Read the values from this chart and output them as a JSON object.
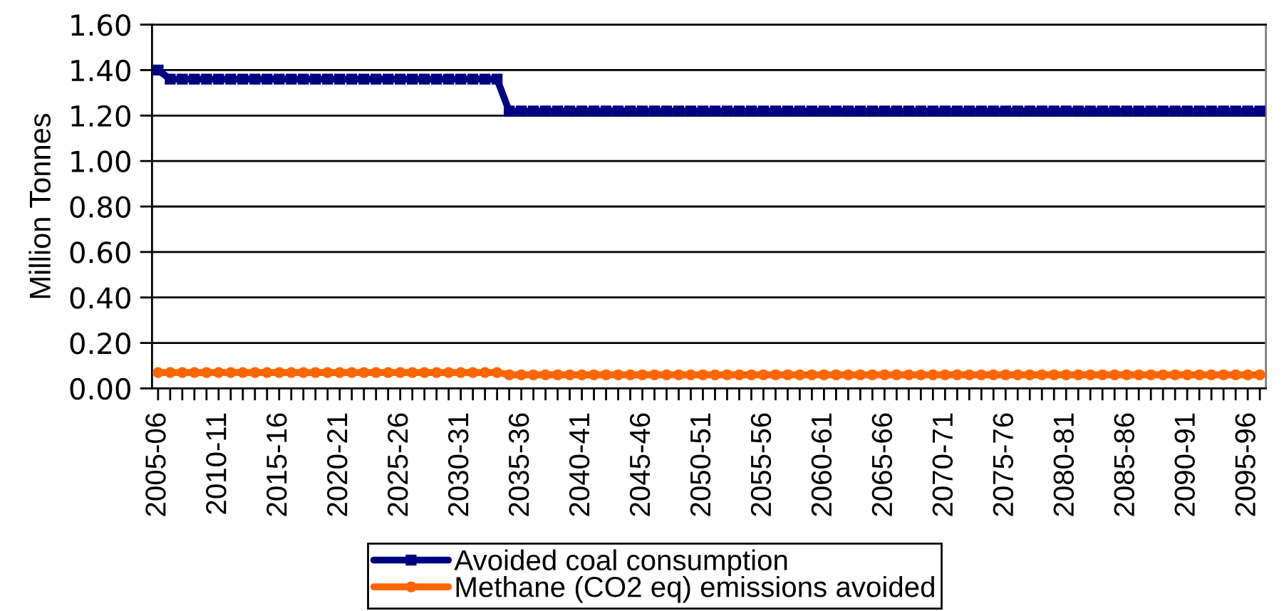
{
  "chart_data": {
    "type": "line",
    "categories": [
      "2005-06",
      null,
      null,
      null,
      null,
      "2010-11",
      null,
      null,
      null,
      null,
      "2015-16",
      null,
      null,
      null,
      null,
      "2020-21",
      null,
      null,
      null,
      null,
      "2025-26",
      null,
      null,
      null,
      null,
      "2030-31",
      null,
      null,
      null,
      null,
      "2035-36",
      null,
      null,
      null,
      null,
      "2040-41",
      null,
      null,
      null,
      null,
      "2045-46",
      null,
      null,
      null,
      null,
      "2050-51",
      null,
      null,
      null,
      null,
      "2055-56",
      null,
      null,
      null,
      null,
      "2060-61",
      null,
      null,
      null,
      null,
      "2065-66",
      null,
      null,
      null,
      null,
      "2070-71",
      null,
      null,
      null,
      null,
      "2075-76",
      null,
      null,
      null,
      null,
      "2080-81",
      null,
      null,
      null,
      null,
      "2085-86",
      null,
      null,
      null,
      null,
      "2090-91",
      null,
      null,
      null,
      null,
      "2095-96",
      null
    ],
    "series": [
      {
        "name": "Avoided coal consumption",
        "color": "#000080",
        "marker": "square",
        "values": [
          1.4,
          1.36,
          1.36,
          1.36,
          1.36,
          1.36,
          1.36,
          1.36,
          1.36,
          1.36,
          1.36,
          1.36,
          1.36,
          1.36,
          1.36,
          1.36,
          1.36,
          1.36,
          1.36,
          1.36,
          1.36,
          1.36,
          1.36,
          1.36,
          1.36,
          1.36,
          1.36,
          1.36,
          1.36,
          1.22,
          1.22,
          1.22,
          1.22,
          1.22,
          1.22,
          1.22,
          1.22,
          1.22,
          1.22,
          1.22,
          1.22,
          1.22,
          1.22,
          1.22,
          1.22,
          1.22,
          1.22,
          1.22,
          1.22,
          1.22,
          1.22,
          1.22,
          1.22,
          1.22,
          1.22,
          1.22,
          1.22,
          1.22,
          1.22,
          1.22,
          1.22,
          1.22,
          1.22,
          1.22,
          1.22,
          1.22,
          1.22,
          1.22,
          1.22,
          1.22,
          1.22,
          1.22,
          1.22,
          1.22,
          1.22,
          1.22,
          1.22,
          1.22,
          1.22,
          1.22,
          1.22,
          1.22,
          1.22,
          1.22,
          1.22,
          1.22,
          1.22,
          1.22,
          1.22,
          1.22,
          1.22,
          1.22
        ]
      },
      {
        "name": "Methane (CO2 eq) emissions avoided",
        "color": "#ff6600",
        "values": [
          0.07,
          0.07,
          0.07,
          0.07,
          0.07,
          0.07,
          0.07,
          0.07,
          0.07,
          0.07,
          0.07,
          0.07,
          0.07,
          0.07,
          0.07,
          0.07,
          0.07,
          0.07,
          0.07,
          0.07,
          0.07,
          0.07,
          0.07,
          0.07,
          0.07,
          0.07,
          0.07,
          0.07,
          0.07,
          0.06,
          0.06,
          0.06,
          0.06,
          0.06,
          0.06,
          0.06,
          0.06,
          0.06,
          0.06,
          0.06,
          0.06,
          0.06,
          0.06,
          0.06,
          0.06,
          0.06,
          0.06,
          0.06,
          0.06,
          0.06,
          0.06,
          0.06,
          0.06,
          0.06,
          0.06,
          0.06,
          0.06,
          0.06,
          0.06,
          0.06,
          0.06,
          0.06,
          0.06,
          0.06,
          0.06,
          0.06,
          0.06,
          0.06,
          0.06,
          0.06,
          0.06,
          0.06,
          0.06,
          0.06,
          0.06,
          0.06,
          0.06,
          0.06,
          0.06,
          0.06,
          0.06,
          0.06,
          0.06,
          0.06,
          0.06,
          0.06,
          0.06,
          0.06,
          0.06,
          0.06,
          0.06,
          0.06
        ]
      }
    ],
    "marker": "circle",
    "ylabel": "Million Tonnes",
    "ylim": [
      0,
      1.6
    ],
    "yticks": [
      {
        "value": 0,
        "label": "0.00"
      },
      {
        "value": 0.2,
        "label": "0.20"
      },
      {
        "value": 0.4,
        "label": "0.40"
      },
      {
        "value": 0.6,
        "label": "0.60"
      },
      {
        "value": 0.8,
        "label": "0.80"
      },
      {
        "value": 1.0,
        "label": "1.00"
      },
      {
        "value": 1.2,
        "label": "1.20"
      },
      {
        "value": 1.4,
        "label": "1.40"
      },
      {
        "value": 1.6,
        "label": "1.60"
      }
    ],
    "grid": "y",
    "legend": "bottom"
  }
}
